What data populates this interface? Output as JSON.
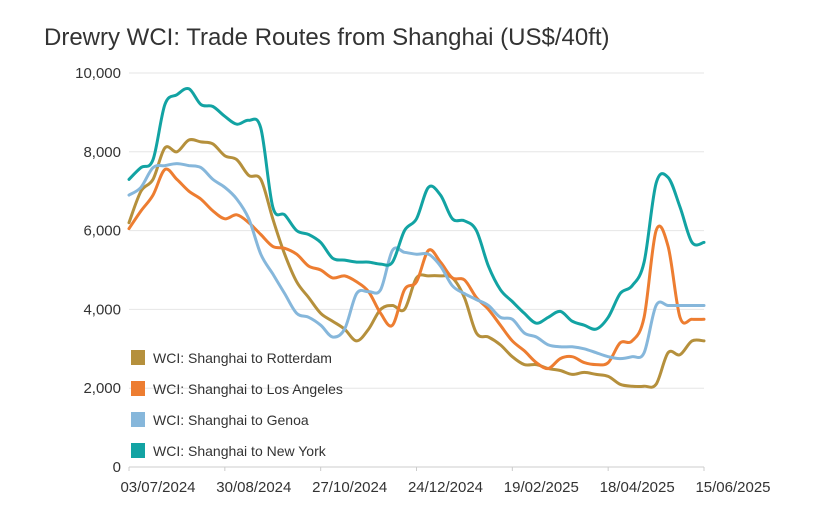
{
  "chart_data": {
    "type": "line",
    "title": "Drewry WCI: Trade Routes from Shanghai (US$/40ft)",
    "xlabel": "",
    "ylabel": "",
    "ylim": [
      0,
      10000
    ],
    "y_ticks": [
      "0",
      "2,000",
      "4,000",
      "6,000",
      "8,000",
      "10,000"
    ],
    "y_tick_values": [
      0,
      2000,
      4000,
      6000,
      8000,
      10000
    ],
    "x_ticks": [
      "03/07/2024",
      "30/08/2024",
      "27/10/2024",
      "24/12/2024",
      "19/02/2025",
      "18/04/2025",
      "15/06/2025"
    ],
    "x_tick_week_index": [
      0,
      8,
      16,
      24,
      32,
      40,
      48
    ],
    "grid": true,
    "legend_position": "bottom-left",
    "x_start": "03/07/2024",
    "x_step_days": 7,
    "series": [
      {
        "name": "WCI: Shanghai to Rotterdam",
        "color": "#b5903c",
        "values": [
          6200,
          7000,
          7300,
          8100,
          8000,
          8300,
          8250,
          8200,
          7900,
          7800,
          7400,
          7300,
          6300,
          5400,
          4700,
          4300,
          3900,
          3700,
          3500,
          3200,
          3500,
          4000,
          4100,
          4000,
          4800,
          4850,
          4850,
          4800,
          4300,
          3400,
          3300,
          3100,
          2800,
          2600,
          2600,
          2500,
          2450,
          2350,
          2400,
          2350,
          2300,
          2100,
          2050,
          2050,
          2100,
          2900,
          2850,
          3200,
          3200
        ]
      },
      {
        "name": "WCI: Shanghai to Los Angeles",
        "color": "#ed7d31",
        "values": [
          6050,
          6500,
          6900,
          7550,
          7300,
          7000,
          6800,
          6500,
          6300,
          6400,
          6200,
          5900,
          5600,
          5550,
          5400,
          5100,
          5000,
          4800,
          4850,
          4700,
          4450,
          3900,
          3600,
          4500,
          4700,
          5500,
          5200,
          4800,
          4750,
          4300,
          4000,
          3600,
          3200,
          2950,
          2650,
          2500,
          2750,
          2800,
          2650,
          2600,
          2650,
          3150,
          3200,
          3800,
          6000,
          5600,
          3800,
          3750,
          3750
        ]
      },
      {
        "name": "WCI: Shanghai to Genoa",
        "color": "#86b7db",
        "values": [
          6900,
          7100,
          7600,
          7650,
          7700,
          7650,
          7600,
          7300,
          7100,
          6800,
          6300,
          5400,
          4900,
          4400,
          3900,
          3800,
          3600,
          3300,
          3500,
          4400,
          4450,
          4500,
          5500,
          5450,
          5400,
          5400,
          5100,
          4600,
          4400,
          4250,
          4100,
          3800,
          3750,
          3400,
          3300,
          3100,
          3050,
          3050,
          3000,
          2900,
          2800,
          2750,
          2800,
          2900,
          4100,
          4100,
          4100,
          4100,
          4100
        ]
      },
      {
        "name": "WCI: Shanghai to New York",
        "color": "#12a3a3",
        "values": [
          7300,
          7600,
          7800,
          9200,
          9450,
          9600,
          9200,
          9150,
          8900,
          8700,
          8800,
          8600,
          6600,
          6400,
          6000,
          5900,
          5700,
          5300,
          5250,
          5200,
          5200,
          5150,
          5200,
          6000,
          6300,
          7100,
          6900,
          6300,
          6250,
          6000,
          5100,
          4500,
          4200,
          3900,
          3650,
          3800,
          3950,
          3700,
          3600,
          3500,
          3800,
          4400,
          4600,
          5200,
          7200,
          7350,
          6600,
          5700,
          5700
        ]
      }
    ]
  }
}
